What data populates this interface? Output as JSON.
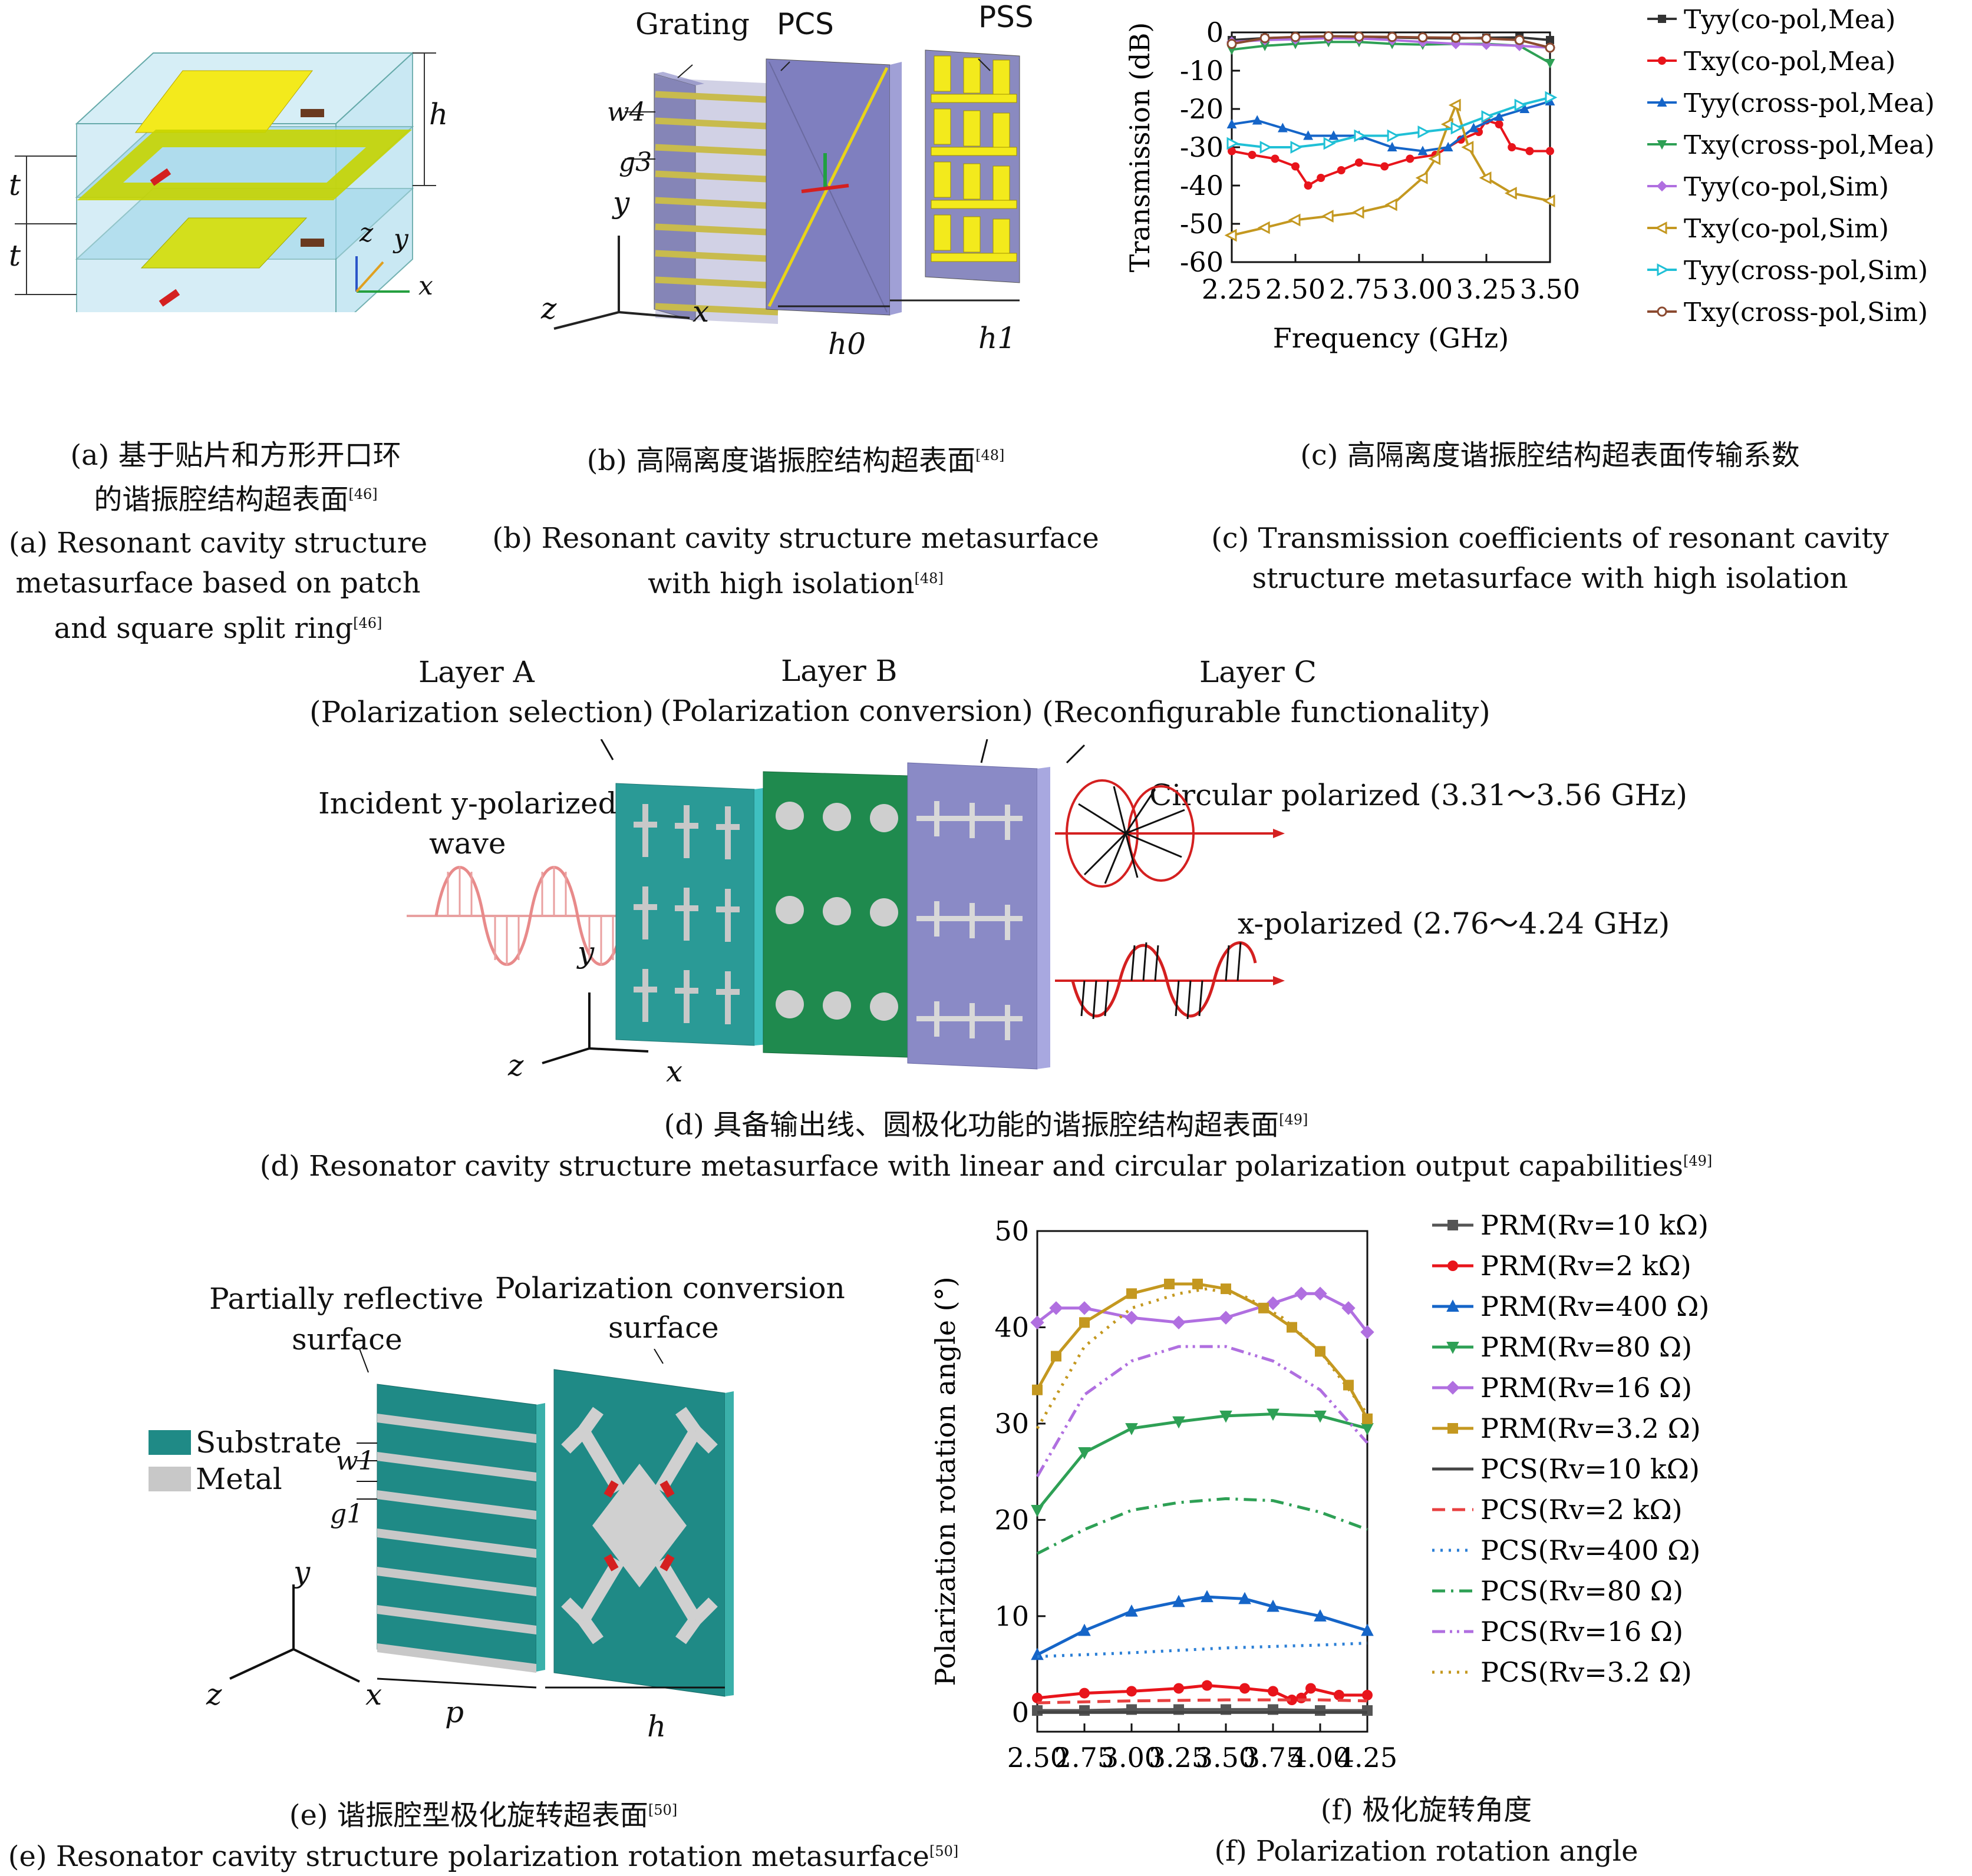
{
  "panel_a": {
    "labels": {
      "h": "h",
      "t1": "t",
      "t2": "t",
      "z": "z",
      "y": "y",
      "x": "x"
    },
    "caption_cn_line1": "(a) 基于贴片和方形开口环",
    "caption_cn_line2": "的谐振腔结构超表面",
    "caption_cn_ref": "[46]",
    "caption_en_line1": "(a) Resonant cavity structure",
    "caption_en_line2": "metasurface based on patch",
    "caption_en_line3": "and square split ring",
    "caption_en_ref": "[46]"
  },
  "panel_b": {
    "labels": {
      "grating": "Grating",
      "pcs": "PCS",
      "pss": "PSS",
      "w4": "w4",
      "g3": "g3",
      "y": "y",
      "z": "z",
      "x": "x",
      "h0": "h0",
      "h1": "h1"
    },
    "caption_cn": "(b) 高隔离度谐振腔结构超表面",
    "caption_cn_ref": "[48]",
    "caption_en_line1": "(b) Resonant cavity structure metasurface",
    "caption_en_line2": "with high isolation",
    "caption_en_ref": "[48]"
  },
  "panel_c": {
    "caption_cn": "(c) 高隔离度谐振腔结构超表面传输系数",
    "caption_en_line1": "(c) Transmission coefficients of resonant cavity",
    "caption_en_line2": "structure metasurface with high isolation"
  },
  "panel_d": {
    "layer_a_title": "Layer A",
    "layer_a_sub": "(Polarization selection)",
    "layer_b_title": "Layer B",
    "layer_b_sub": "(Polarization conversion)",
    "layer_c_title": "Layer C",
    "layer_c_sub": "(Reconfigurable functionality)",
    "incident_line1": "Incident y-polarized",
    "incident_line2": "wave",
    "circular": "Circular polarized (3.31～3.56 GHz)",
    "xpol": "x-polarized (2.76～4.24 GHz)",
    "axis": {
      "y": "y",
      "z": "z",
      "x": "x"
    },
    "caption_cn": "(d) 具备输出线、圆极化功能的谐振腔结构超表面",
    "caption_cn_ref": "[49]",
    "caption_en": "(d) Resonator cavity structure metasurface with linear and circular polarization output capabilities",
    "caption_en_ref": "[49]"
  },
  "panel_e": {
    "prs_line1": "Partially reflective",
    "prs_line2": "surface",
    "pcs_line1": "Polarization conversion",
    "pcs_line2": "surface",
    "legend_substrate": "Substrate",
    "legend_metal": "Metal",
    "labels": {
      "w1": "w1",
      "g1": "g1",
      "p": "p",
      "h": "h",
      "y": "y",
      "z": "z",
      "x": "x"
    },
    "colors": {
      "substrate": "#1f8a86",
      "metal": "#c8c8c8"
    },
    "caption_cn": "(e) 谐振腔型极化旋转超表面",
    "caption_cn_ref": "[50]",
    "caption_en": "(e) Resonator cavity structure polarization rotation metasurface",
    "caption_en_ref": "[50]"
  },
  "panel_f": {
    "caption_cn": "(f) 极化旋转角度",
    "caption_en": "(f) Polarization rotation angle"
  },
  "chart_data": [
    {
      "type": "line",
      "xlabel": "Frequency (GHz)",
      "ylabel": "Transmission (dB)",
      "xlim": [
        2.25,
        3.5
      ],
      "ylim": [
        -60,
        0
      ],
      "x_ticks": [
        "2.25",
        "2.50",
        "2.75",
        "3.00",
        "3.25",
        "3.50"
      ],
      "y_ticks": [
        "0",
        "-10",
        "-20",
        "-30",
        "-40",
        "-50",
        "-60"
      ],
      "legend_position": "right",
      "series": [
        {
          "name": "Tyy(co-pol,Mea)",
          "color": "#333333",
          "marker": "square",
          "dash": "solid",
          "x": [
            2.25,
            2.38,
            2.5,
            2.63,
            2.75,
            2.88,
            3.0,
            3.13,
            3.25,
            3.38,
            3.5
          ],
          "y": [
            -2,
            -1.5,
            -1.3,
            -1.2,
            -1.2,
            -1.3,
            -1.5,
            -1.6,
            -1.4,
            -1.3,
            -2
          ]
        },
        {
          "name": "Txy(co-pol,Mea)",
          "color": "#e8141b",
          "marker": "circle",
          "dash": "solid",
          "x": [
            2.25,
            2.33,
            2.42,
            2.5,
            2.55,
            2.6,
            2.68,
            2.75,
            2.85,
            2.95,
            3.05,
            3.15,
            3.22,
            3.25,
            3.3,
            3.35,
            3.42,
            3.5
          ],
          "y": [
            -31,
            -32,
            -33,
            -35,
            -40,
            -38,
            -36,
            -34,
            -35,
            -33,
            -32,
            -28,
            -26,
            -23,
            -24,
            -30,
            -31,
            -31
          ]
        },
        {
          "name": "Tyy(cross-pol,Mea)",
          "color": "#1565c8",
          "marker": "triangle-up",
          "dash": "solid",
          "x": [
            2.25,
            2.35,
            2.45,
            2.55,
            2.65,
            2.75,
            2.88,
            3.0,
            3.1,
            3.2,
            3.3,
            3.4,
            3.5
          ],
          "y": [
            -24,
            -23,
            -25,
            -27,
            -27,
            -27,
            -30,
            -31,
            -30,
            -25,
            -22,
            -20,
            -18
          ]
        },
        {
          "name": "Txy(cross-pol,Mea)",
          "color": "#2ea055",
          "marker": "triangle-down",
          "dash": "solid",
          "x": [
            2.25,
            2.38,
            2.5,
            2.63,
            2.75,
            2.88,
            3.0,
            3.13,
            3.25,
            3.38,
            3.5
          ],
          "y": [
            -4.5,
            -3.5,
            -3,
            -2.5,
            -2.5,
            -3,
            -3.2,
            -3,
            -3,
            -3.5,
            -8
          ]
        },
        {
          "name": "Tyy(co-pol,Sim)",
          "color": "#b06fe0",
          "marker": "diamond",
          "dash": "solid",
          "x": [
            2.25,
            2.38,
            2.5,
            2.63,
            2.75,
            2.88,
            3.0,
            3.13,
            3.25,
            3.38,
            3.5
          ],
          "y": [
            -2.5,
            -2,
            -1.8,
            -1.5,
            -1.6,
            -2,
            -2.5,
            -3,
            -3.2,
            -3.5,
            -4
          ]
        },
        {
          "name": "Txy(co-pol,Sim)",
          "color": "#c49820",
          "marker": "triangle-left",
          "dash": "solid",
          "x": [
            2.25,
            2.38,
            2.5,
            2.63,
            2.75,
            2.88,
            3.0,
            3.05,
            3.1,
            3.13,
            3.18,
            3.25,
            3.35,
            3.5
          ],
          "y": [
            -53,
            -51,
            -49,
            -48,
            -47,
            -45,
            -38,
            -33,
            -24,
            -19,
            -30,
            -38,
            -42,
            -44
          ]
        },
        {
          "name": "Tyy(cross-pol,Sim)",
          "color": "#20c0d6",
          "marker": "triangle-right",
          "dash": "solid",
          "x": [
            2.25,
            2.38,
            2.5,
            2.63,
            2.75,
            2.88,
            3.0,
            3.13,
            3.25,
            3.38,
            3.5
          ],
          "y": [
            -29,
            -30,
            -30,
            -29,
            -27,
            -27,
            -26,
            -25,
            -22,
            -19,
            -17
          ]
        },
        {
          "name": "Txy(cross-pol,Sim)",
          "color": "#8b4a30",
          "marker": "circle-open",
          "dash": "solid",
          "x": [
            2.25,
            2.38,
            2.5,
            2.63,
            2.75,
            2.88,
            3.0,
            3.13,
            3.25,
            3.38,
            3.5
          ],
          "y": [
            -3,
            -1.5,
            -1.2,
            -1,
            -1.1,
            -1.2,
            -1.3,
            -1.4,
            -1.6,
            -2,
            -4
          ]
        }
      ]
    },
    {
      "type": "line",
      "xlabel": "Frequency (GHz)",
      "ylabel": "Polarization rotation angle (°)",
      "xlim": [
        2.5,
        4.25
      ],
      "ylim": [
        -2,
        50
      ],
      "x_ticks": [
        "2.50",
        "2.75",
        "3.00",
        "3.25",
        "3.50",
        "3.75",
        "4.00",
        "4.25"
      ],
      "y_ticks": [
        "0",
        "10",
        "20",
        "30",
        "40",
        "50"
      ],
      "legend_position": "right",
      "series": [
        {
          "name": "PRM(Rv=10 kΩ)",
          "color": "#555555",
          "marker": "square",
          "dash": "solid",
          "x": [
            2.5,
            2.75,
            3.0,
            3.25,
            3.5,
            3.75,
            4.0,
            4.25
          ],
          "y": [
            0.2,
            0.2,
            0.3,
            0.3,
            0.3,
            0.3,
            0.2,
            0.2
          ]
        },
        {
          "name": "PRM(Rv=2 kΩ)",
          "color": "#e8141b",
          "marker": "circle",
          "dash": "solid",
          "x": [
            2.5,
            2.75,
            3.0,
            3.25,
            3.4,
            3.6,
            3.75,
            3.85,
            3.9,
            3.95,
            4.1,
            4.25
          ],
          "y": [
            1.5,
            2,
            2.2,
            2.5,
            2.8,
            2.5,
            2.2,
            1.3,
            1.5,
            2.5,
            1.8,
            1.8
          ]
        },
        {
          "name": "PRM(Rv=400 Ω)",
          "color": "#1565c8",
          "marker": "triangle-up",
          "dash": "solid",
          "x": [
            2.5,
            2.75,
            3.0,
            3.25,
            3.4,
            3.6,
            3.75,
            4.0,
            4.25
          ],
          "y": [
            6,
            8.5,
            10.5,
            11.5,
            12,
            11.8,
            11,
            10,
            8.5
          ]
        },
        {
          "name": "PRM(Rv=80 Ω)",
          "color": "#2ea055",
          "marker": "triangle-down",
          "dash": "solid",
          "x": [
            2.5,
            2.75,
            3.0,
            3.25,
            3.5,
            3.75,
            4.0,
            4.25
          ],
          "y": [
            21,
            27,
            29.5,
            30.2,
            30.8,
            31,
            30.8,
            29.5
          ]
        },
        {
          "name": "PRM(Rv=16 Ω)",
          "color": "#b06fe0",
          "marker": "diamond",
          "dash": "solid",
          "x": [
            2.5,
            2.6,
            2.75,
            3.0,
            3.25,
            3.5,
            3.75,
            3.9,
            4.0,
            4.15,
            4.25
          ],
          "y": [
            40.5,
            42,
            42,
            41,
            40.5,
            41,
            42.5,
            43.5,
            43.5,
            42,
            39.5
          ]
        },
        {
          "name": "PRM(Rv=3.2 Ω)",
          "color": "#c49820",
          "marker": "square",
          "dash": "solid",
          "x": [
            2.5,
            2.6,
            2.75,
            3.0,
            3.2,
            3.35,
            3.5,
            3.7,
            3.85,
            4.0,
            4.15,
            4.25
          ],
          "y": [
            33.5,
            37,
            40.5,
            43.5,
            44.5,
            44.5,
            44,
            42,
            40,
            37.5,
            34,
            30.5
          ]
        },
        {
          "name": "PCS(Rv=10 kΩ)",
          "color": "#444444",
          "marker": "none",
          "dash": "solid",
          "x": [
            2.5,
            4.25
          ],
          "y": [
            0,
            0
          ]
        },
        {
          "name": "PCS(Rv=2 kΩ)",
          "color": "#e84040",
          "marker": "none",
          "dash": "dash",
          "x": [
            2.5,
            3.0,
            3.5,
            4.0,
            4.25
          ],
          "y": [
            1.0,
            1.2,
            1.3,
            1.3,
            1.2
          ]
        },
        {
          "name": "PCS(Rv=400 Ω)",
          "color": "#2b7fd6",
          "marker": "none",
          "dash": "dot",
          "x": [
            2.5,
            3.0,
            3.5,
            4.0,
            4.25
          ],
          "y": [
            5.8,
            6.2,
            6.7,
            7.0,
            7.2
          ]
        },
        {
          "name": "PCS(Rv=80 Ω)",
          "color": "#2ea055",
          "marker": "none",
          "dash": "dashdot",
          "x": [
            2.5,
            2.75,
            3.0,
            3.25,
            3.5,
            3.75,
            4.0,
            4.25
          ],
          "y": [
            16.5,
            19,
            21,
            21.8,
            22.2,
            22,
            20.8,
            19
          ]
        },
        {
          "name": "PCS(Rv=16 Ω)",
          "color": "#b06fe0",
          "marker": "none",
          "dash": "dashdotdot",
          "x": [
            2.5,
            2.75,
            3.0,
            3.25,
            3.5,
            3.75,
            4.0,
            4.25
          ],
          "y": [
            24.5,
            33,
            36.5,
            38,
            38,
            36.5,
            33.5,
            28
          ]
        },
        {
          "name": "PCS(Rv=3.2 Ω)",
          "color": "#c49820",
          "marker": "none",
          "dash": "dot",
          "x": [
            2.5,
            2.75,
            3.0,
            3.25,
            3.4,
            3.6,
            3.8,
            4.0,
            4.25
          ],
          "y": [
            29.5,
            38,
            42,
            43.5,
            44,
            43.2,
            41,
            37.5,
            31
          ]
        }
      ]
    }
  ]
}
